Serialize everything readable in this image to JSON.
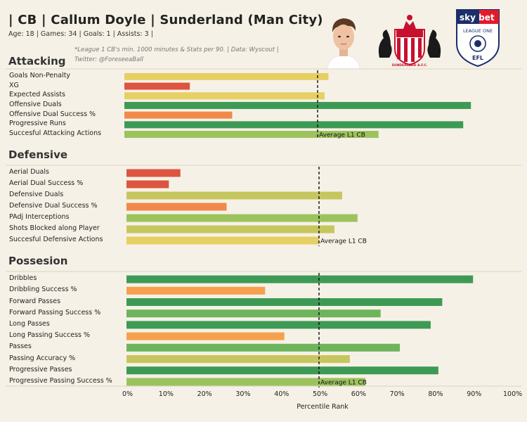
{
  "header": {
    "title": "| CB | Callum Doyle | Sunderland (Man City) |",
    "meta": "Age: 18 | Games: 34 | Goals: 1 | Assists: 3 |",
    "note_line1": "*League 1 CB's  min. 1000 minutes  & Stats per 90. | Data: Wyscout |",
    "note_line2": "Twitter: @ForeseeaBall"
  },
  "logos": {
    "league_top": "sky bet",
    "league_middle": "LEAGUE ONE",
    "league_bottom": "EFL",
    "club_text": "SUNDERLAND A.F.C."
  },
  "colors": {
    "background": "#f6f1e6",
    "dark_green": "#3d9a55",
    "mid_green": "#6db45c",
    "light_green": "#9cc25e",
    "yellow_green": "#c6c65e",
    "yellow": "#e6cf63",
    "orange": "#f0894a",
    "red": "#dc5540"
  },
  "chart_data": {
    "type": "bar",
    "orientation": "horizontal",
    "xlabel": "Percentile Rank",
    "xlim": [
      0,
      100
    ],
    "xticks": [
      "0%",
      "10%",
      "20%",
      "30%",
      "40%",
      "50%",
      "60%",
      "70%",
      "80%",
      "90%",
      "100%"
    ],
    "reference_line": {
      "value": 50,
      "style": "dashed",
      "label": "Average L1 CB"
    },
    "sections": [
      {
        "title": "Attacking",
        "categories": [
          "Goals Non-Penalty",
          "XG",
          "Expected Assists",
          "Offensive Duals",
          "Offensive Dual Success %",
          "Progressive Runs",
          "Succesful Attacking Actions"
        ],
        "values": [
          53,
          17,
          52,
          90,
          28,
          88,
          66
        ],
        "colors": [
          "#e6cf63",
          "#dc5540",
          "#e6cf63",
          "#3d9a55",
          "#f0894a",
          "#3d9a55",
          "#9cc25e"
        ]
      },
      {
        "title": "Defensive",
        "categories": [
          "Aerial Duals",
          "Aerial Dual Success %",
          "Defensive Duals",
          "Defensive Dual Success %",
          "PAdj Interceptions",
          "Shots Blocked along Player",
          "Succesful Defensive Actions"
        ],
        "values": [
          14,
          11,
          56,
          26,
          60,
          54,
          50
        ],
        "colors": [
          "#dc5540",
          "#dc5540",
          "#c6c65e",
          "#f0894a",
          "#9cc25e",
          "#c6c65e",
          "#e6cf63"
        ]
      },
      {
        "title": "Possesion",
        "categories": [
          "Dribbles",
          "Dribbling Success %",
          "Forward Passes",
          "Forward Passing Success %",
          "Long Passes",
          "Long Passing Success %",
          "Passes",
          "Passing Accuracy %",
          "Progressive Passes",
          "Progressive Passing Success %"
        ],
        "values": [
          90,
          36,
          82,
          66,
          79,
          41,
          71,
          58,
          81,
          62
        ],
        "colors": [
          "#3d9a55",
          "#f6a04e",
          "#3d9a55",
          "#6db45c",
          "#3d9a55",
          "#f6a04e",
          "#6db45c",
          "#c6c65e",
          "#3d9a55",
          "#9cc25e"
        ]
      }
    ]
  }
}
